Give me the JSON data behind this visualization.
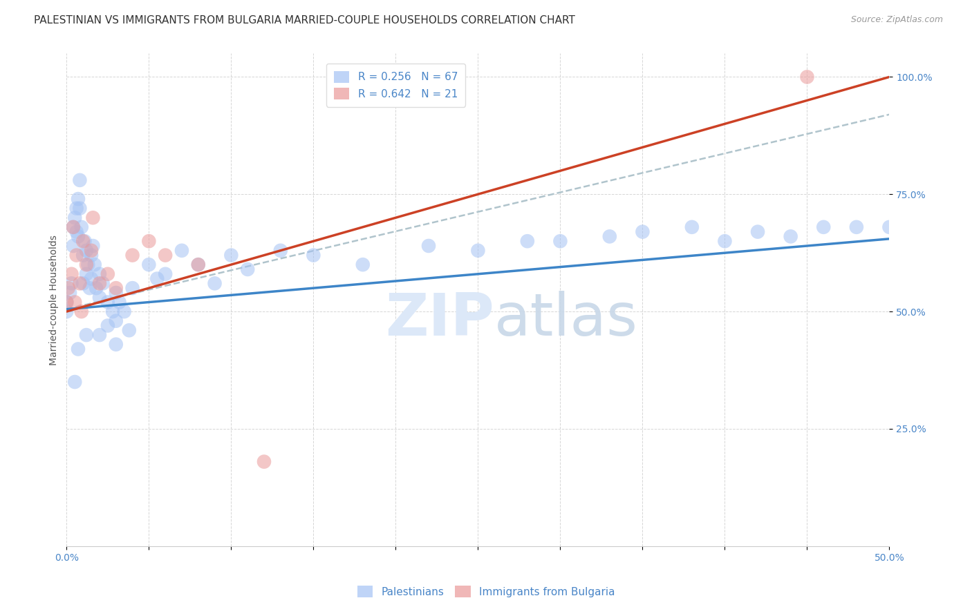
{
  "title": "PALESTINIAN VS IMMIGRANTS FROM BULGARIA MARRIED-COUPLE HOUSEHOLDS CORRELATION CHART",
  "source": "Source: ZipAtlas.com",
  "ylabel": "Married-couple Households",
  "xlim": [
    0.0,
    0.5
  ],
  "ylim": [
    0.0,
    1.05
  ],
  "blue_color": "#a4c2f4",
  "pink_color": "#ea9999",
  "blue_line_color": "#3d85c8",
  "pink_line_color": "#cc4125",
  "dash_line_color": "#b0c4cc",
  "label_color": "#4a86c8",
  "watermark_color": "#dce8f8",
  "background_color": "#ffffff",
  "grid_color": "#cccccc",
  "series1_label": "Palestinians",
  "series2_label": "Immigrants from Bulgaria",
  "blue_scatter_x": [
    0.0,
    0.0,
    0.002,
    0.003,
    0.004,
    0.004,
    0.005,
    0.006,
    0.006,
    0.007,
    0.007,
    0.008,
    0.008,
    0.009,
    0.01,
    0.01,
    0.011,
    0.012,
    0.012,
    0.013,
    0.014,
    0.015,
    0.015,
    0.016,
    0.017,
    0.018,
    0.02,
    0.02,
    0.022,
    0.025,
    0.025,
    0.028,
    0.03,
    0.03,
    0.032,
    0.035,
    0.038,
    0.04,
    0.05,
    0.055,
    0.06,
    0.07,
    0.08,
    0.09,
    0.1,
    0.11,
    0.13,
    0.15,
    0.18,
    0.22,
    0.25,
    0.28,
    0.3,
    0.33,
    0.35,
    0.38,
    0.4,
    0.42,
    0.44,
    0.46,
    0.48,
    0.5,
    0.005,
    0.007,
    0.012,
    0.02,
    0.03
  ],
  "blue_scatter_y": [
    0.52,
    0.5,
    0.54,
    0.56,
    0.68,
    0.64,
    0.7,
    0.72,
    0.67,
    0.74,
    0.66,
    0.78,
    0.72,
    0.68,
    0.62,
    0.56,
    0.65,
    0.63,
    0.58,
    0.6,
    0.55,
    0.62,
    0.57,
    0.64,
    0.6,
    0.55,
    0.58,
    0.53,
    0.56,
    0.52,
    0.47,
    0.5,
    0.54,
    0.48,
    0.52,
    0.5,
    0.46,
    0.55,
    0.6,
    0.57,
    0.58,
    0.63,
    0.6,
    0.56,
    0.62,
    0.59,
    0.63,
    0.62,
    0.6,
    0.64,
    0.63,
    0.65,
    0.65,
    0.66,
    0.67,
    0.68,
    0.65,
    0.67,
    0.66,
    0.68,
    0.68,
    0.68,
    0.35,
    0.42,
    0.45,
    0.45,
    0.43
  ],
  "pink_scatter_x": [
    0.0,
    0.001,
    0.003,
    0.004,
    0.005,
    0.006,
    0.008,
    0.009,
    0.01,
    0.012,
    0.015,
    0.016,
    0.02,
    0.025,
    0.03,
    0.04,
    0.05,
    0.06,
    0.08,
    0.12,
    0.45
  ],
  "pink_scatter_y": [
    0.52,
    0.55,
    0.58,
    0.68,
    0.52,
    0.62,
    0.56,
    0.5,
    0.65,
    0.6,
    0.63,
    0.7,
    0.56,
    0.58,
    0.55,
    0.62,
    0.65,
    0.62,
    0.6,
    0.18,
    1.0
  ],
  "blue_line_x0": 0.0,
  "blue_line_x1": 0.5,
  "blue_line_y0": 0.505,
  "blue_line_y1": 0.655,
  "pink_line_x0": 0.0,
  "pink_line_x1": 0.5,
  "pink_line_y0": 0.5,
  "pink_line_y1": 1.0,
  "dash_line_x0": 0.0,
  "dash_line_x1": 0.5,
  "dash_line_y0": 0.505,
  "dash_line_y1": 0.92,
  "title_fontsize": 11,
  "axis_label_fontsize": 10,
  "tick_fontsize": 10
}
